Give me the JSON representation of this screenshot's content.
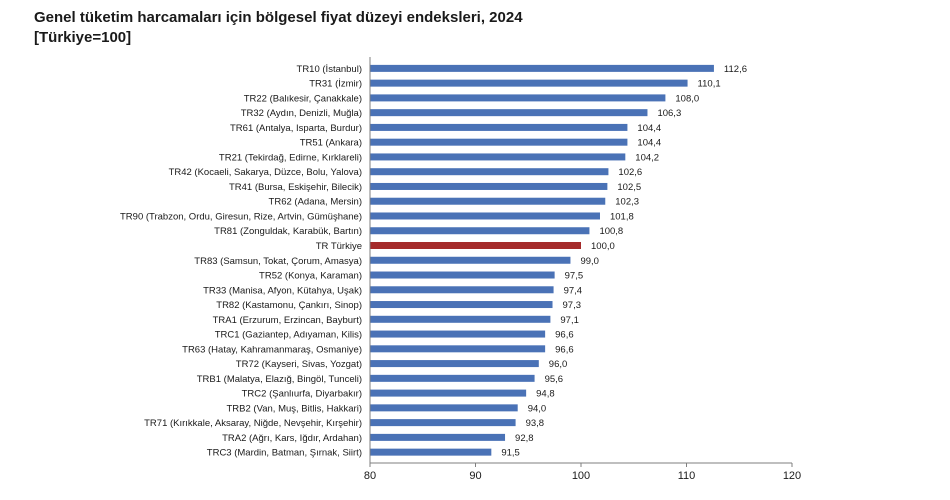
{
  "chart_data": {
    "type": "bar",
    "orientation": "horizontal",
    "title": "Genel tüketim harcamaları için bölgesel fiyat düzeyi endeksleri, 2024",
    "subtitle": "[Türkiye=100]",
    "xlim": [
      80,
      120
    ],
    "xticks": [
      "80",
      "90",
      "100",
      "110",
      "120"
    ],
    "grid": false,
    "bar_color": "#4a72b6",
    "highlight_color": "#a52a2a",
    "highlight_category": "TR Türkiye",
    "categories": [
      "TR10 (İstanbul)",
      "TR31 (İzmir)",
      "TR22 (Balıkesir, Çanakkale)",
      "TR32 (Aydın, Denizli, Muğla)",
      "TR61 (Antalya, Isparta, Burdur)",
      "TR51 (Ankara)",
      "TR21 (Tekirdağ, Edirne, Kırklareli)",
      "TR42 (Kocaeli, Sakarya, Düzce, Bolu, Yalova)",
      "TR41 (Bursa, Eskişehir, Bilecik)",
      "TR62 (Adana, Mersin)",
      "TR90 (Trabzon, Ordu, Giresun, Rize, Artvin, Gümüşhane)",
      "TR81 (Zonguldak, Karabük, Bartın)",
      "TR Türkiye",
      "TR83 (Samsun, Tokat, Çorum, Amasya)",
      "TR52 (Konya, Karaman)",
      "TR33 (Manisa, Afyon, Kütahya, Uşak)",
      "TR82 (Kastamonu, Çankırı, Sinop)",
      "TRA1 (Erzurum, Erzincan, Bayburt)",
      "TRC1 (Gaziantep, Adıyaman, Kilis)",
      "TR63 (Hatay, Kahramanmaraş, Osmaniye)",
      "TR72 (Kayseri, Sivas, Yozgat)",
      "TRB1 (Malatya, Elazığ, Bingöl, Tunceli)",
      "TRC2 (Şanlıurfa, Diyarbakır)",
      "TRB2 (Van, Muş, Bitlis, Hakkari)",
      "TR71 (Kırıkkale, Aksaray, Niğde, Nevşehir, Kırşehir)",
      "TRA2 (Ağrı, Kars, Iğdır, Ardahan)",
      "TRC3 (Mardin, Batman, Şırnak, Siirt)"
    ],
    "values": [
      112.6,
      110.1,
      108.0,
      106.3,
      104.4,
      104.4,
      104.2,
      102.6,
      102.5,
      102.3,
      101.8,
      100.8,
      100.0,
      99.0,
      97.5,
      97.4,
      97.3,
      97.1,
      96.6,
      96.6,
      96.0,
      95.6,
      94.8,
      94.0,
      93.8,
      92.8,
      91.5
    ],
    "value_labels": [
      "112,6",
      "110,1",
      "108,0",
      "106,3",
      "104,4",
      "104,4",
      "104,2",
      "102,6",
      "102,5",
      "102,3",
      "101,8",
      "100,8",
      "100,0",
      "99,0",
      "97,5",
      "97,4",
      "97,3",
      "97,1",
      "96,6",
      "96,6",
      "96,0",
      "95,6",
      "94,8",
      "94,0",
      "93,8",
      "92,8",
      "91,5"
    ]
  }
}
